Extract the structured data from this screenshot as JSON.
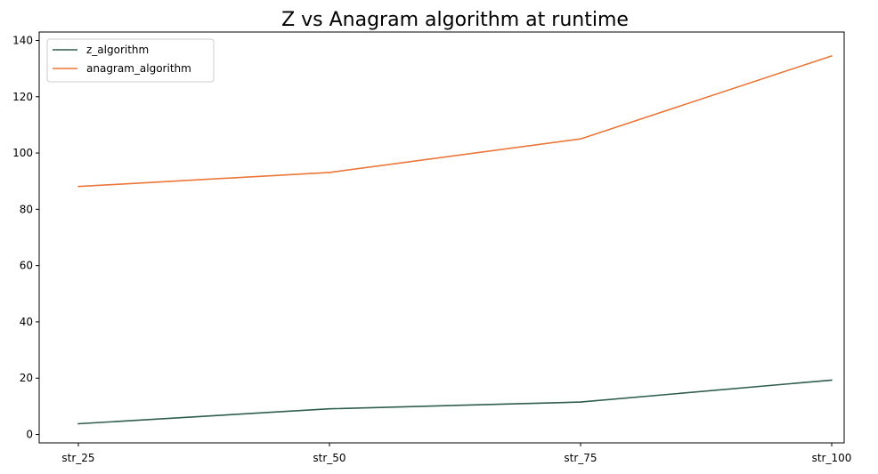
{
  "chart_data": {
    "type": "line",
    "title": "Z vs Anagram algorithm at runtime",
    "xlabel": "",
    "ylabel": "",
    "categories": [
      "str_25",
      "str_50",
      "str_75",
      "str_100"
    ],
    "ylim": [
      -3,
      143
    ],
    "yticks": [
      0,
      20,
      40,
      60,
      80,
      100,
      120,
      140
    ],
    "grid": false,
    "legend_position": "top-left",
    "series": [
      {
        "name": "z_algorithm",
        "color": "#2f5d50",
        "values": [
          3.8,
          9.1,
          11.5,
          19.3
        ]
      },
      {
        "name": "anagram_algorithm",
        "color": "#eb7639",
        "values": [
          88.1,
          93.1,
          105.0,
          134.5
        ]
      }
    ]
  }
}
